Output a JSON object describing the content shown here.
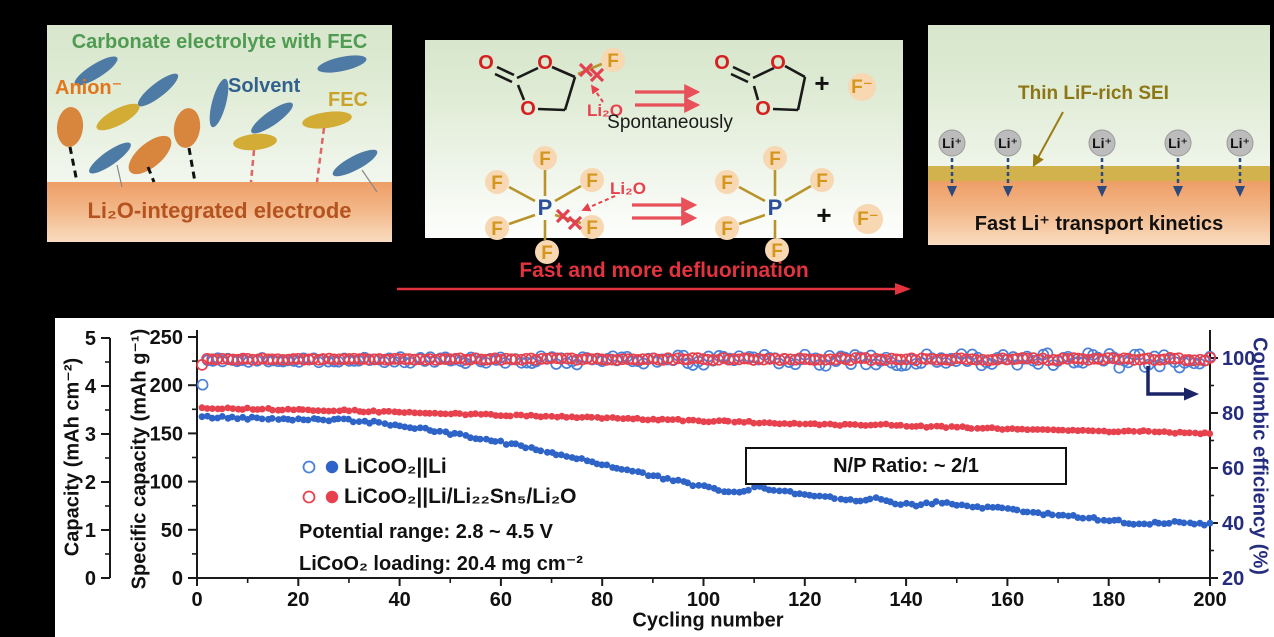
{
  "panel_electrolyte": {
    "title": "Carbonate electrolyte with FEC",
    "anion_label": "Anion⁻",
    "solvent_label": "Solvent",
    "fec_label": "FEC",
    "electrode_label": "Li₂O-integrated electrode"
  },
  "panel_reactions": {
    "li2o_label": "Li₂O",
    "spontaneously_label": "Spontaneously",
    "plus": "+",
    "fluoride_label": "F⁻",
    "f_atom": "F",
    "p_atom": "P",
    "o_atom": "O",
    "arrow_caption": "Fast and more defluorination"
  },
  "panel_sei": {
    "sei_label": "Thin LiF-rich SEI",
    "li_ion": "Li⁺",
    "kinetics_label": "Fast Li⁺ transport kinetics"
  },
  "chart_data": {
    "type": "scatter",
    "xlabel": "Cycling number",
    "xlim": [
      0,
      200
    ],
    "x_ticks": [
      0,
      20,
      40,
      60,
      80,
      100,
      120,
      140,
      160,
      180,
      200
    ],
    "x_minor_step": 10,
    "left_axis": {
      "label": "Specific capacity (mAh g⁻¹)",
      "ticks": [
        0,
        50,
        100,
        150,
        200,
        250
      ],
      "lim": [
        0,
        250
      ]
    },
    "capacity_axis": {
      "label": "Capacity (mAh cm⁻²)",
      "ticks": [
        0,
        1,
        2,
        3,
        4,
        5
      ],
      "lim": [
        0,
        5
      ]
    },
    "right_axis": {
      "label": "Coulombic efficiency (%)",
      "ticks": [
        20,
        40,
        60,
        80,
        100
      ],
      "lim": [
        20,
        100
      ],
      "color": "#252c7e"
    },
    "legend": [
      {
        "label": "LiCoO₂||Li",
        "color": "#2e63c8",
        "open_color": "#4b80d8"
      },
      {
        "label": "LiCoO₂||Li/Li₂₂Sn₅/Li₂O",
        "color": "#e8414e",
        "open_color": "#e8414e"
      }
    ],
    "annotations": {
      "np_ratio": "N/P Ratio: ~ 2/1",
      "potential": "Potential range: 2.8 ~ 4.5 V",
      "loading": "LiCoO₂ loading: 20.4 mg cm⁻²"
    },
    "series": [
      {
        "name": "LiCoO₂||Li specific capacity",
        "axis": "left",
        "style": "filled",
        "color": "#2e63c8",
        "r": 3.4,
        "jitter": 1.5,
        "keypoints": [
          [
            1,
            167
          ],
          [
            5,
            166.5
          ],
          [
            10,
            166
          ],
          [
            15,
            165.5
          ],
          [
            20,
            165
          ],
          [
            25,
            164.5
          ],
          [
            30,
            163.5
          ],
          [
            35,
            161.5
          ],
          [
            40,
            158
          ],
          [
            45,
            154
          ],
          [
            50,
            150
          ],
          [
            55,
            145.5
          ],
          [
            60,
            141
          ],
          [
            65,
            136
          ],
          [
            70,
            130
          ],
          [
            75,
            124
          ],
          [
            80,
            118
          ],
          [
            85,
            112
          ],
          [
            90,
            106
          ],
          [
            95,
            100
          ],
          [
            100,
            95
          ],
          [
            103,
            90.5
          ],
          [
            106,
            88
          ],
          [
            110,
            94
          ],
          [
            114,
            92
          ],
          [
            118,
            88
          ],
          [
            122,
            85.5
          ],
          [
            126,
            83.5
          ],
          [
            130,
            81
          ],
          [
            134,
            82
          ],
          [
            138,
            78
          ],
          [
            142,
            76
          ],
          [
            146,
            78
          ],
          [
            150,
            76
          ],
          [
            154,
            72.5
          ],
          [
            158,
            74
          ],
          [
            162,
            70
          ],
          [
            166,
            67
          ],
          [
            170,
            65
          ],
          [
            174,
            64
          ],
          [
            178,
            61
          ],
          [
            182,
            59
          ],
          [
            186,
            55.5
          ],
          [
            190,
            58
          ],
          [
            194,
            57
          ],
          [
            198,
            56
          ],
          [
            200,
            56
          ]
        ]
      },
      {
        "name": "LiCoO₂||Li/Li₂₂Sn₅/Li₂O specific capacity",
        "axis": "left",
        "style": "filled",
        "color": "#e8414e",
        "r": 3.4,
        "jitter": 0.9,
        "keypoints": [
          [
            1,
            176
          ],
          [
            10,
            175.5
          ],
          [
            20,
            174.5
          ],
          [
            30,
            173.5
          ],
          [
            40,
            172
          ],
          [
            50,
            170.5
          ],
          [
            60,
            169
          ],
          [
            70,
            167.5
          ],
          [
            80,
            166
          ],
          [
            90,
            164.5
          ],
          [
            100,
            163
          ],
          [
            110,
            161.5
          ],
          [
            115,
            160.5
          ],
          [
            120,
            160
          ],
          [
            125,
            159
          ],
          [
            130,
            158.5
          ],
          [
            135,
            160
          ],
          [
            140,
            157.5
          ],
          [
            145,
            157
          ],
          [
            150,
            156.5
          ],
          [
            155,
            155.5
          ],
          [
            160,
            154.5
          ],
          [
            165,
            154
          ],
          [
            170,
            153.5
          ],
          [
            175,
            152.5
          ],
          [
            180,
            151.5
          ],
          [
            185,
            153
          ],
          [
            190,
            151.5
          ],
          [
            195,
            150.5
          ],
          [
            200,
            150
          ]
        ]
      },
      {
        "name": "LiCoO₂||Li coulombic efficiency",
        "axis": "right",
        "style": "open",
        "color": "#4b80d8",
        "r": 5,
        "first": 90.3,
        "base": 99.2,
        "noise_start": 0.7,
        "noise_end": 3.0
      },
      {
        "name": "LiCoO₂||Li/Li₂₂Sn₅/Li₂O coulombic efficiency",
        "axis": "right",
        "style": "open",
        "color": "#e8414e",
        "r": 5,
        "first": 97.5,
        "base": 99.6,
        "noise_start": 0.25,
        "noise_end": 0.5
      }
    ]
  }
}
